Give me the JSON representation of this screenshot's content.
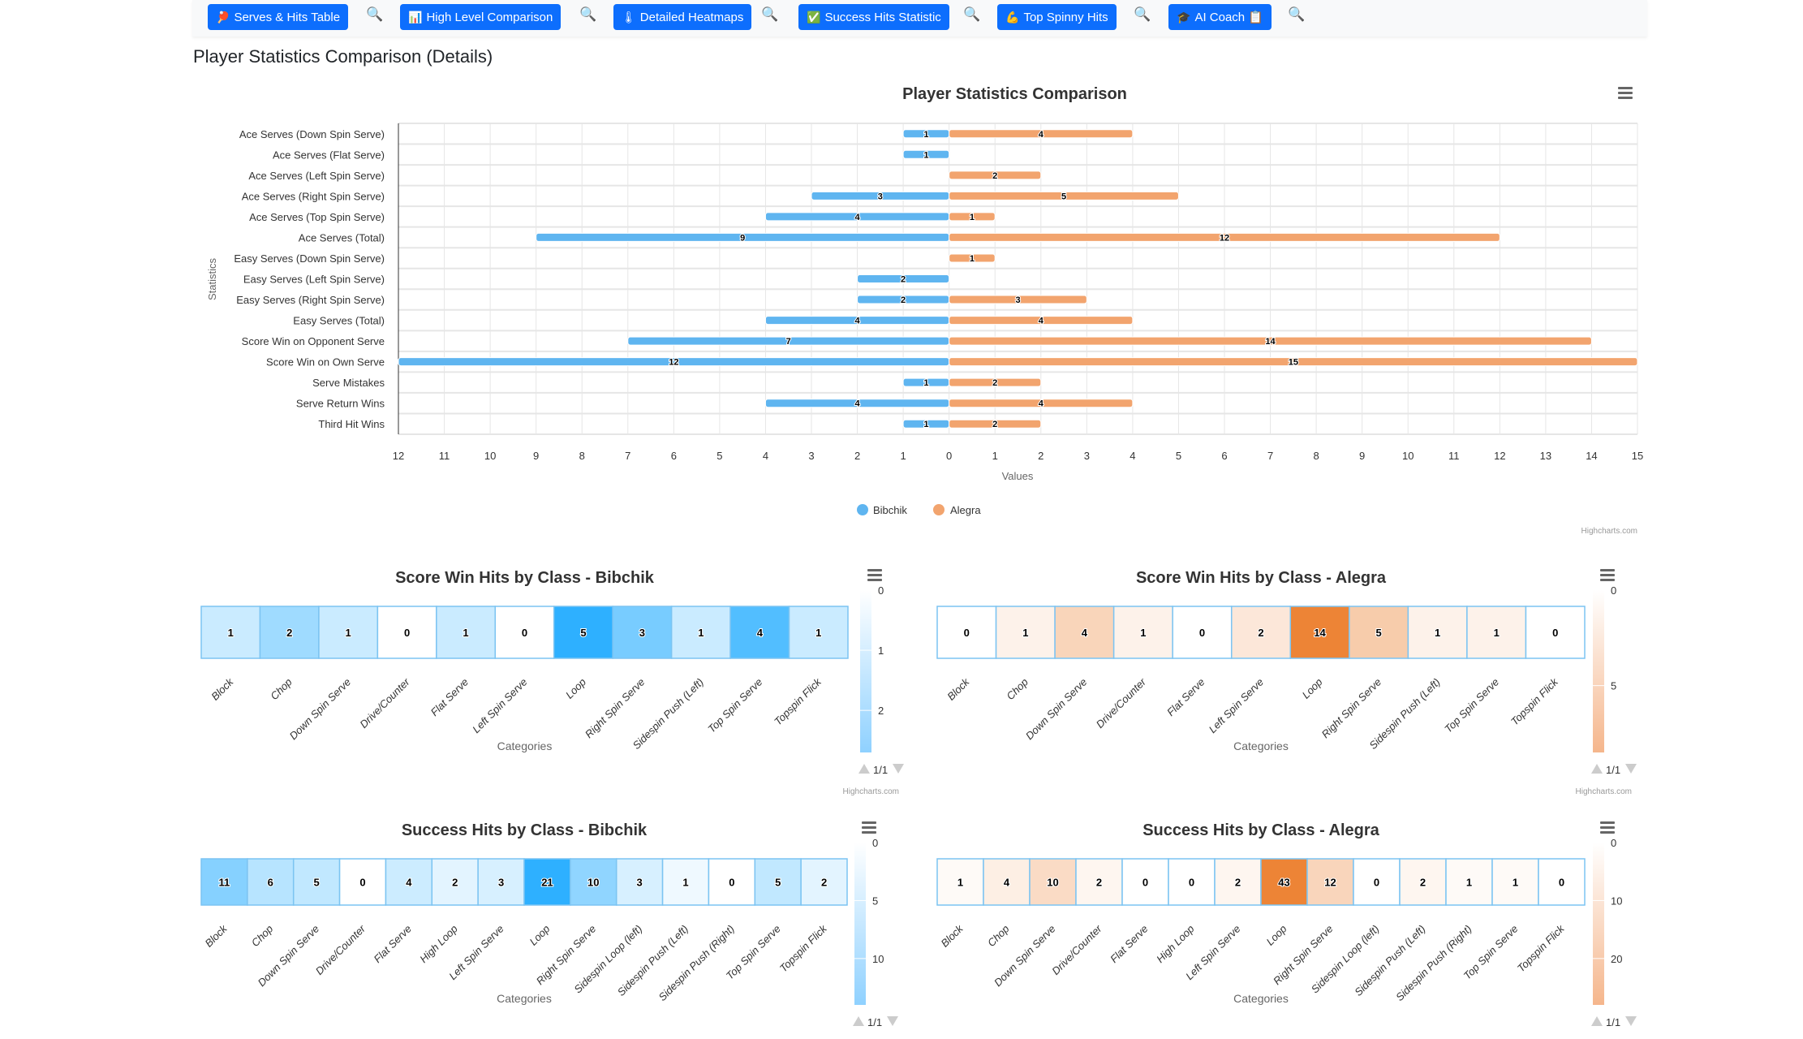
{
  "toolbar": {
    "buttons": [
      {
        "label": "Serves & Hits Table",
        "icon": "ping-pong-paddle-icon",
        "glyph": "🏓"
      },
      {
        "label": "High Level Comparison",
        "icon": "bar-chart-icon",
        "glyph": "📊"
      },
      {
        "label": "Detailed Heatmaps",
        "icon": "thermometer-icon",
        "glyph": "🌡"
      },
      {
        "label": "Success Hits Statistic",
        "icon": "check-box-icon",
        "glyph": "✅"
      },
      {
        "label": "Top Spinny Hits",
        "icon": "flexed-biceps-icon",
        "glyph": "💪"
      },
      {
        "label": "AI Coach",
        "icon": "graduation-cap-icon",
        "glyph": "🎓",
        "suffix_glyph": "📋"
      }
    ],
    "search_glyph": "🔍"
  },
  "page": {
    "title": "Player Statistics Comparison (Details)"
  },
  "colors": {
    "bibchik": "#5fb5f0",
    "alegra": "#f2a46e",
    "toolbar_button": "#0d6efd",
    "heat_blue_max": "#2eb0ff",
    "heat_orange_max": "#ed8436"
  },
  "chart_data": [
    {
      "type": "bar",
      "orientation": "horizontal",
      "title": "Player Statistics Comparison",
      "xlabel": "Values",
      "ylabel": "Statistics",
      "xlim": [
        -12,
        15
      ],
      "xticks": [
        12,
        11,
        10,
        9,
        8,
        7,
        6,
        5,
        4,
        3,
        2,
        1,
        0,
        1,
        2,
        3,
        4,
        5,
        6,
        7,
        8,
        9,
        10,
        11,
        12,
        13,
        14,
        15
      ],
      "categories": [
        "Ace Serves (Down Spin Serve)",
        "Ace Serves (Flat Serve)",
        "Ace Serves (Left Spin Serve)",
        "Ace Serves (Right Spin Serve)",
        "Ace Serves (Top Spin Serve)",
        "Ace Serves (Total)",
        "Easy Serves (Down Spin Serve)",
        "Easy Serves (Left Spin Serve)",
        "Easy Serves (Right Spin Serve)",
        "Easy Serves (Total)",
        "Score Win on Opponent Serve",
        "Score Win on Own Serve",
        "Serve Mistakes",
        "Serve Return Wins",
        "Third Hit Wins"
      ],
      "series": [
        {
          "name": "Bibchik",
          "direction": "left",
          "values": [
            1,
            1,
            0,
            3,
            4,
            9,
            0,
            2,
            2,
            4,
            7,
            12,
            1,
            4,
            1
          ]
        },
        {
          "name": "Alegra",
          "direction": "right",
          "values": [
            4,
            0,
            2,
            5,
            1,
            12,
            1,
            0,
            3,
            4,
            14,
            15,
            2,
            4,
            2
          ]
        }
      ],
      "legend": [
        "Bibchik",
        "Alegra"
      ],
      "legend_position": "bottom-center",
      "grid": true,
      "credits": "Highcharts.com",
      "menu": "context-menu"
    },
    {
      "type": "heatmap",
      "title": "Score Win Hits by Class - Bibchik",
      "xlabel": "Categories",
      "palette": "blue",
      "categories": [
        "Block",
        "Chop",
        "Down Spin Serve",
        "Drive/Counter",
        "Flat Serve",
        "Left Spin Serve",
        "Loop",
        "Right Spin Serve",
        "Sidespin Push (Left)",
        "Top Spin Serve",
        "Topspin Flick"
      ],
      "values": [
        1,
        2,
        1,
        0,
        1,
        0,
        5,
        3,
        1,
        4,
        1
      ],
      "colorbar_ticks": [
        "0",
        "1",
        "2"
      ],
      "colorbar_max": 2.7,
      "legend_nav": "1/1",
      "credits": "Highcharts.com"
    },
    {
      "type": "heatmap",
      "title": "Score Win Hits by Class - Alegra",
      "xlabel": "Categories",
      "palette": "orange",
      "categories": [
        "Block",
        "Chop",
        "Down Spin Serve",
        "Drive/Counter",
        "Flat Serve",
        "Left Spin Serve",
        "Loop",
        "Right Spin Serve",
        "Sidespin Push (Left)",
        "Top Spin Serve",
        "Topspin Flick"
      ],
      "values": [
        0,
        1,
        4,
        1,
        0,
        2,
        14,
        5,
        1,
        1,
        0
      ],
      "colorbar_ticks": [
        "0",
        "5"
      ],
      "colorbar_max": 8.5,
      "legend_nav": "1/1",
      "credits": "Highcharts.com"
    },
    {
      "type": "heatmap",
      "title": "Success Hits by Class - Bibchik",
      "xlabel": "Categories",
      "palette": "blue",
      "categories": [
        "Block",
        "Chop",
        "Down Spin Serve",
        "Drive/Counter",
        "Flat Serve",
        "High Loop",
        "Left Spin Serve",
        "Loop",
        "Right Spin Serve",
        "Sidespin Loop (left)",
        "Sidespin Push (Left)",
        "Sidespin Push (Right)",
        "Top Spin Serve",
        "Topspin Flick"
      ],
      "values": [
        11,
        6,
        5,
        0,
        4,
        2,
        3,
        21,
        10,
        3,
        1,
        0,
        5,
        2
      ],
      "colorbar_ticks": [
        "0",
        "5",
        "10"
      ],
      "colorbar_max": 14,
      "legend_nav": "1/1",
      "credits": "Highcharts.com"
    },
    {
      "type": "heatmap",
      "title": "Success Hits by Class - Alegra",
      "xlabel": "Categories",
      "palette": "orange",
      "categories": [
        "Block",
        "Chop",
        "Down Spin Serve",
        "Drive/Counter",
        "Flat Serve",
        "High Loop",
        "Left Spin Serve",
        "Loop",
        "Right Spin Serve",
        "Sidespin Loop (left)",
        "Sidespin Push (Left)",
        "Sidespin Push (Right)",
        "Top Spin Serve",
        "Topspin Flick"
      ],
      "values": [
        1,
        4,
        10,
        2,
        0,
        0,
        2,
        43,
        12,
        0,
        2,
        1,
        1,
        0
      ],
      "colorbar_ticks": [
        "0",
        "10",
        "20"
      ],
      "colorbar_max": 28,
      "legend_nav": "1/1",
      "credits": "Highcharts.com"
    }
  ]
}
